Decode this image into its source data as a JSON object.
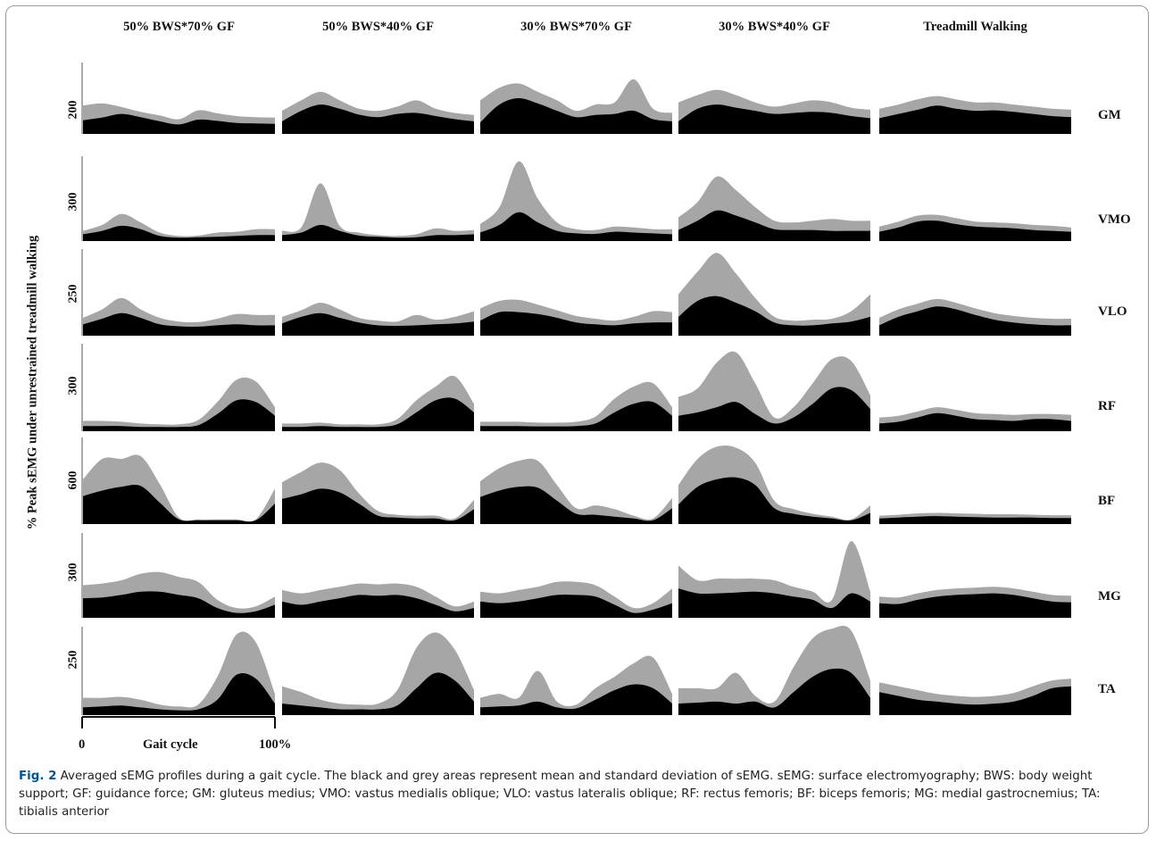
{
  "chart_data": {
    "type": "area",
    "title": "",
    "ylabel": "% Peak sEMG under unrestrained treadmill walking",
    "xlabel": "Gait cycle",
    "x_ticks": [
      "0",
      "100%"
    ],
    "conditions": [
      "50% BWS*70% GF",
      "50% BWS*40% GF",
      "30% BWS*70% GF",
      "30% BWS*40% GF",
      "Treadmill Walking"
    ],
    "muscles": [
      "GM",
      "VMO",
      "VLO",
      "RF",
      "BF",
      "MG",
      "TA"
    ],
    "row_ticks": [
      "200",
      "300",
      "250",
      "300",
      "600",
      "300",
      "250"
    ],
    "row_ylim": [
      [
        0,
        340
      ],
      [
        0,
        500
      ],
      [
        0,
        460
      ],
      [
        0,
        510
      ],
      [
        0,
        930
      ],
      [
        0,
        520
      ],
      [
        0,
        460
      ]
    ],
    "x": [
      0,
      10,
      20,
      30,
      40,
      50,
      60,
      70,
      80,
      90,
      100
    ],
    "legend": "none",
    "colors": {
      "mean": "#000000",
      "sd": "#a6a6a6"
    },
    "profiles": {
      "GM": [
        {
          "mean": [
            65,
            78,
            95,
            80,
            60,
            45,
            68,
            62,
            52,
            50,
            48
          ],
          "upper": [
            135,
            145,
            128,
            105,
            88,
            70,
            112,
            98,
            85,
            80,
            78
          ]
        },
        {
          "mean": [
            60,
            110,
            140,
            120,
            92,
            80,
            95,
            100,
            85,
            70,
            60
          ],
          "upper": [
            110,
            160,
            200,
            160,
            120,
            110,
            130,
            160,
            120,
            100,
            90
          ]
        },
        {
          "mean": [
            55,
            140,
            170,
            145,
            110,
            80,
            90,
            95,
            110,
            70,
            60
          ],
          "upper": [
            160,
            220,
            240,
            200,
            160,
            110,
            140,
            150,
            260,
            120,
            100
          ]
        },
        {
          "mean": [
            60,
            120,
            140,
            125,
            110,
            95,
            100,
            105,
            100,
            85,
            75
          ],
          "upper": [
            150,
            185,
            210,
            185,
            150,
            130,
            145,
            160,
            150,
            125,
            115
          ]
        },
        {
          "mean": [
            75,
            95,
            115,
            135,
            120,
            110,
            112,
            105,
            95,
            85,
            80
          ],
          "upper": [
            120,
            140,
            165,
            180,
            165,
            150,
            150,
            140,
            130,
            120,
            115
          ]
        }
      ],
      "VMO": [
        {
          "mean": [
            40,
            60,
            90,
            70,
            30,
            20,
            22,
            25,
            30,
            35,
            35
          ],
          "upper": [
            60,
            95,
            160,
            110,
            50,
            30,
            32,
            50,
            55,
            70,
            70
          ]
        },
        {
          "mean": [
            35,
            50,
            95,
            60,
            32,
            25,
            20,
            22,
            35,
            35,
            40
          ],
          "upper": [
            60,
            80,
            340,
            90,
            50,
            35,
            30,
            40,
            75,
            60,
            65
          ]
        },
        {
          "mean": [
            50,
            95,
            170,
            110,
            60,
            45,
            42,
            55,
            50,
            45,
            40
          ],
          "upper": [
            100,
            200,
            470,
            250,
            110,
            70,
            65,
            85,
            80,
            70,
            70
          ]
        },
        {
          "mean": [
            65,
            120,
            180,
            150,
            110,
            70,
            65,
            65,
            60,
            60,
            60
          ],
          "upper": [
            140,
            230,
            380,
            300,
            200,
            120,
            110,
            120,
            130,
            120,
            120
          ]
        },
        {
          "mean": [
            55,
            80,
            115,
            120,
            100,
            85,
            80,
            75,
            65,
            60,
            55
          ],
          "upper": [
            85,
            115,
            150,
            155,
            135,
            115,
            110,
            105,
            95,
            90,
            80
          ]
        }
      ],
      "VLO": [
        {
          "mean": [
            60,
            90,
            120,
            95,
            60,
            50,
            48,
            55,
            60,
            55,
            55
          ],
          "upper": [
            95,
            140,
            200,
            140,
            95,
            75,
            72,
            90,
            115,
            110,
            110
          ]
        },
        {
          "mean": [
            65,
            100,
            120,
            95,
            70,
            55,
            52,
            55,
            60,
            65,
            75
          ],
          "upper": [
            100,
            135,
            175,
            140,
            95,
            80,
            75,
            110,
            85,
            100,
            130
          ]
        },
        {
          "mean": [
            80,
            125,
            125,
            115,
            95,
            70,
            60,
            55,
            65,
            70,
            70
          ],
          "upper": [
            145,
            185,
            190,
            165,
            135,
            105,
            90,
            80,
            100,
            130,
            125
          ]
        },
        {
          "mean": [
            100,
            185,
            210,
            175,
            130,
            70,
            55,
            55,
            65,
            75,
            100
          ],
          "upper": [
            220,
            340,
            440,
            330,
            200,
            100,
            80,
            85,
            90,
            130,
            220
          ]
        },
        {
          "mean": [
            55,
            100,
            130,
            155,
            140,
            110,
            85,
            70,
            60,
            55,
            55
          ],
          "upper": [
            95,
            140,
            170,
            195,
            175,
            145,
            120,
            105,
            95,
            90,
            90
          ]
        }
      ],
      "RF": [
        {
          "mean": [
            30,
            30,
            30,
            25,
            25,
            25,
            35,
            100,
            180,
            170,
            90
          ],
          "upper": [
            60,
            60,
            55,
            45,
            40,
            40,
            65,
            170,
            300,
            290,
            140
          ]
        },
        {
          "mean": [
            25,
            25,
            30,
            25,
            25,
            25,
            40,
            110,
            180,
            190,
            110
          ],
          "upper": [
            45,
            45,
            50,
            40,
            40,
            40,
            70,
            180,
            260,
            320,
            160
          ]
        },
        {
          "mean": [
            30,
            30,
            30,
            28,
            28,
            30,
            45,
            110,
            160,
            170,
            90
          ],
          "upper": [
            55,
            55,
            55,
            50,
            50,
            55,
            85,
            190,
            260,
            280,
            140
          ]
        },
        {
          "mean": [
            90,
            110,
            140,
            170,
            100,
            45,
            80,
            160,
            250,
            240,
            130
          ],
          "upper": [
            200,
            250,
            400,
            460,
            280,
            80,
            140,
            280,
            420,
            410,
            210
          ]
        },
        {
          "mean": [
            45,
            55,
            80,
            105,
            90,
            70,
            65,
            60,
            70,
            70,
            60
          ],
          "upper": [
            80,
            90,
            115,
            140,
            125,
            105,
            100,
            95,
            100,
            100,
            95
          ]
        }
      ],
      "BF": [
        {
          "mean": [
            300,
            360,
            400,
            410,
            230,
            50,
            40,
            40,
            40,
            40,
            220
          ],
          "upper": [
            480,
            700,
            700,
            730,
            430,
            70,
            50,
            50,
            50,
            50,
            380
          ]
        },
        {
          "mean": [
            270,
            320,
            380,
            340,
            220,
            90,
            70,
            60,
            60,
            40,
            160
          ],
          "upper": [
            450,
            560,
            660,
            580,
            330,
            140,
            100,
            90,
            90,
            60,
            260
          ]
        },
        {
          "mean": [
            290,
            360,
            400,
            390,
            250,
            110,
            100,
            80,
            60,
            40,
            170
          ],
          "upper": [
            460,
            600,
            680,
            680,
            420,
            170,
            200,
            160,
            90,
            60,
            280
          ]
        },
        {
          "mean": [
            210,
            400,
            480,
            500,
            420,
            170,
            110,
            80,
            60,
            40,
            120
          ],
          "upper": [
            420,
            700,
            830,
            820,
            660,
            250,
            160,
            110,
            80,
            50,
            200
          ]
        },
        {
          "mean": [
            60,
            70,
            80,
            85,
            80,
            75,
            70,
            70,
            70,
            65,
            65
          ],
          "upper": [
            90,
            100,
            115,
            120,
            115,
            110,
            105,
            105,
            100,
            95,
            95
          ]
        }
      ],
      "MG": [
        {
          "mean": [
            120,
            125,
            140,
            160,
            160,
            140,
            120,
            60,
            30,
            40,
            80
          ],
          "upper": [
            200,
            210,
            230,
            270,
            280,
            250,
            220,
            110,
            60,
            70,
            130
          ]
        },
        {
          "mean": [
            100,
            80,
            100,
            120,
            140,
            135,
            140,
            120,
            80,
            40,
            60
          ],
          "upper": [
            170,
            150,
            170,
            190,
            210,
            205,
            210,
            190,
            130,
            70,
            100
          ]
        },
        {
          "mean": [
            100,
            90,
            100,
            120,
            140,
            140,
            130,
            80,
            30,
            50,
            90
          ],
          "upper": [
            160,
            150,
            170,
            190,
            220,
            220,
            200,
            130,
            60,
            90,
            180
          ]
        },
        {
          "mean": [
            180,
            150,
            150,
            155,
            160,
            150,
            130,
            110,
            60,
            150,
            100
          ],
          "upper": [
            320,
            230,
            240,
            240,
            240,
            230,
            190,
            160,
            110,
            470,
            160
          ]
        },
        {
          "mean": [
            90,
            85,
            110,
            130,
            140,
            145,
            150,
            140,
            120,
            100,
            95
          ],
          "upper": [
            130,
            125,
            150,
            170,
            180,
            185,
            190,
            180,
            160,
            140,
            135
          ]
        }
      ],
      "TA": [
        {
          "mean": [
            40,
            45,
            50,
            40,
            30,
            25,
            30,
            80,
            210,
            190,
            60
          ],
          "upper": [
            90,
            90,
            95,
            80,
            55,
            45,
            55,
            200,
            420,
            380,
            110
          ]
        },
        {
          "mean": [
            60,
            50,
            40,
            30,
            30,
            30,
            50,
            140,
            220,
            180,
            70
          ],
          "upper": [
            150,
            120,
            80,
            60,
            55,
            60,
            130,
            350,
            430,
            340,
            130
          ]
        },
        {
          "mean": [
            40,
            45,
            50,
            70,
            40,
            35,
            80,
            130,
            160,
            140,
            60
          ],
          "upper": [
            90,
            110,
            90,
            230,
            70,
            55,
            140,
            200,
            270,
            300,
            110
          ]
        },
        {
          "mean": [
            60,
            65,
            70,
            60,
            70,
            40,
            120,
            200,
            240,
            220,
            90
          ],
          "upper": [
            140,
            140,
            140,
            220,
            100,
            70,
            250,
            400,
            450,
            440,
            180
          ]
        },
        {
          "mean": [
            120,
            100,
            80,
            70,
            60,
            55,
            60,
            70,
            100,
            140,
            150
          ],
          "upper": [
            170,
            150,
            130,
            110,
            100,
            95,
            100,
            115,
            150,
            180,
            190
          ]
        }
      ]
    }
  },
  "caption": {
    "label": "Fig. 2",
    "text": " Averaged sEMG profiles during a gait cycle. The black and grey areas represent mean and standard deviation of sEMG. sEMG: surface electromyography; BWS: body weight support; GF: guidance force; GM: gluteus medius; VMO: vastus medialis oblique; VLO: vastus lateralis oblique; RF: rectus femoris; BF: biceps femoris; MG: medial gastrocnemius; TA: tibialis anterior"
  }
}
